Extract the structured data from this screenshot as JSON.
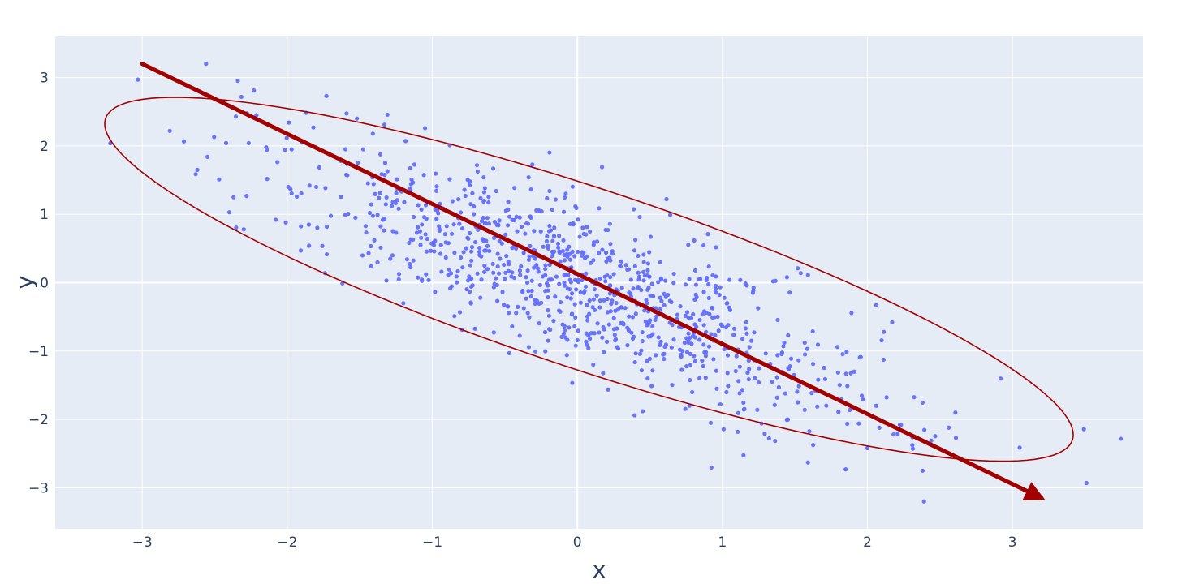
{
  "chart_data": {
    "type": "scatter",
    "title": "",
    "xlabel": "x",
    "ylabel": "y",
    "xlim": [
      -3.6,
      3.9
    ],
    "ylim": [
      -3.6,
      3.6
    ],
    "xticks": [
      -3,
      -2,
      -1,
      0,
      1,
      2,
      3
    ],
    "yticks": [
      -3,
      -2,
      -1,
      0,
      1,
      2,
      3
    ],
    "xtick_labels": [
      "−3",
      "−2",
      "−1",
      "0",
      "1",
      "2",
      "3"
    ],
    "ytick_labels": [
      "−3",
      "−2",
      "−1",
      "0",
      "1",
      "2",
      "3"
    ],
    "grid": true,
    "legend": "none",
    "colors": {
      "plot_background": "#e5ecf6",
      "grid": "#ffffff",
      "points": "#636efa",
      "annotation": "#a30000",
      "text": "#2a3f5f"
    },
    "points": [
      [
        -3.22,
        2.04
      ],
      [
        -3.03,
        2.97
      ],
      [
        -2.81,
        2.22
      ],
      [
        -2.56,
        3.2
      ],
      [
        -2.38,
        2.56
      ],
      [
        -2.23,
        2.81
      ],
      [
        -2.62,
        1.65
      ],
      [
        -2.55,
        1.84
      ],
      [
        -2.47,
        1.51
      ],
      [
        -2.37,
        1.25
      ],
      [
        -2.4,
        1.03
      ],
      [
        -2.3,
        0.78
      ],
      [
        -2.08,
        0.92
      ],
      [
        -2.01,
        0.88
      ],
      [
        -1.97,
        1.95
      ],
      [
        -1.9,
        2.05
      ],
      [
        -1.82,
        2.27
      ],
      [
        -1.73,
        2.73
      ],
      [
        -1.52,
        2.4
      ],
      [
        -1.33,
        2.31
      ],
      [
        -1.05,
        2.26
      ],
      [
        -0.88,
        2.01
      ],
      [
        0.17,
        1.69
      ],
      [
        -1.8,
        1.4
      ],
      [
        -1.63,
        1.78
      ],
      [
        -1.6,
        0.99
      ],
      [
        -1.74,
        0.14
      ],
      [
        -1.62,
        -0.01
      ],
      [
        -1.85,
        0.54
      ],
      [
        -1.53,
        0.95
      ],
      [
        -1.4,
        0.62
      ],
      [
        -1.28,
        1.12
      ],
      [
        -1.1,
        0.81
      ],
      [
        -0.94,
        0.55
      ],
      [
        -0.82,
        1.22
      ],
      [
        -0.63,
        0.47
      ],
      [
        -0.45,
        0.15
      ],
      [
        -0.34,
        0.86
      ],
      [
        -0.2,
        0.5
      ],
      [
        -0.07,
        0.21
      ],
      [
        0.05,
        -0.12
      ],
      [
        0.2,
        0.31
      ],
      [
        0.33,
        -0.37
      ],
      [
        0.5,
        -0.55
      ],
      [
        0.61,
        -0.21
      ],
      [
        0.74,
        -0.88
      ],
      [
        0.86,
        -1.14
      ],
      [
        1.0,
        -0.64
      ],
      [
        1.12,
        -1.23
      ],
      [
        1.25,
        -1.46
      ],
      [
        1.38,
        -1.06
      ],
      [
        1.52,
        -1.75
      ],
      [
        1.66,
        -1.42
      ],
      [
        1.8,
        -1.89
      ],
      [
        1.94,
        -2.06
      ],
      [
        2.06,
        -1.8
      ],
      [
        2.18,
        -2.22
      ],
      [
        2.31,
        -2.26
      ],
      [
        2.44,
        -2.31
      ],
      [
        2.56,
        -2.12
      ],
      [
        2.61,
        -2.27
      ],
      [
        2.38,
        -2.75
      ],
      [
        2.39,
        -3.2
      ],
      [
        3.51,
        -2.93
      ],
      [
        1.59,
        -2.63
      ],
      [
        1.85,
        -2.73
      ],
      [
        2.0,
        -2.42
      ],
      [
        1.27,
        -2.06
      ],
      [
        0.92,
        -2.05
      ],
      [
        0.45,
        -1.88
      ],
      [
        -0.47,
        -1.03
      ],
      [
        -1.2,
        -0.3
      ],
      [
        -0.08,
        1.3
      ],
      [
        0.43,
        0.96
      ],
      [
        0.64,
        0.99
      ],
      [
        0.9,
        0.71
      ],
      [
        1.35,
        0.02
      ],
      [
        1.54,
        0.14
      ],
      [
        2.06,
        -0.33
      ],
      [
        2.17,
        -0.58
      ],
      [
        -0.32,
        0.95
      ],
      [
        -0.56,
        1.34
      ],
      [
        -0.74,
        1.48
      ],
      [
        0.21,
        0.77
      ],
      [
        -0.16,
        0.68
      ],
      [
        0.28,
        -0.12
      ],
      [
        0.48,
        -0.3
      ],
      [
        0.69,
        -0.47
      ],
      [
        0.81,
        -0.61
      ],
      [
        0.95,
        -0.77
      ],
      [
        -0.98,
        1.07
      ],
      [
        -1.15,
        1.35
      ],
      [
        -1.25,
        0.73
      ],
      [
        -0.7,
        0.82
      ],
      [
        -0.55,
        0.68
      ],
      [
        -0.29,
        0.35
      ],
      [
        0.08,
        0.05
      ],
      [
        0.37,
        -0.2
      ],
      [
        0.56,
        -0.8
      ],
      [
        0.78,
        -1.2
      ],
      [
        1.05,
        -0.95
      ],
      [
        1.2,
        -0.85
      ]
    ],
    "random_points": {
      "count": 900,
      "mean": [
        0,
        0
      ],
      "std_x": 1.0,
      "std_y": 1.0,
      "correlation": -0.8
    },
    "ellipse": {
      "center": [
        0.08,
        0.05
      ],
      "angle_deg": -37.5,
      "semi_major": 4.12,
      "semi_minor": 1.12
    },
    "arrow": {
      "from": [
        -3.0,
        3.2
      ],
      "to": [
        3.2,
        -3.15
      ]
    }
  }
}
